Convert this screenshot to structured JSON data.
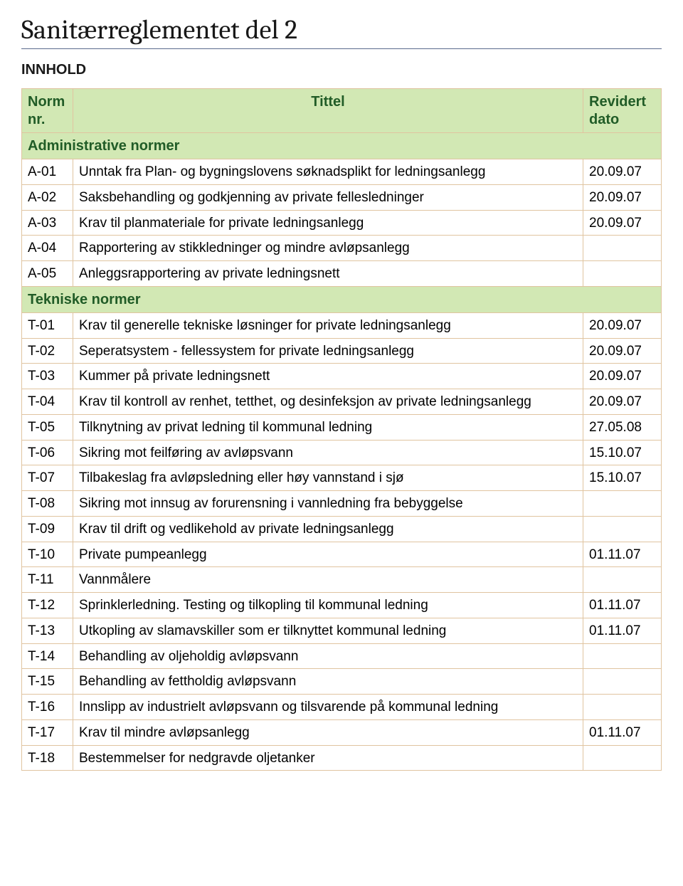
{
  "page": {
    "title": "Sanitærreglementet del 2",
    "subhead": "INNHOLD"
  },
  "colors": {
    "header_bg": "#d2e8b4",
    "header_text": "#215c27",
    "border": "#e0c4a0",
    "rule": "#5a6b8c",
    "body_text": "#000000",
    "background": "#ffffff"
  },
  "table": {
    "columns": {
      "nr_line1": "Norm",
      "nr_line2": "nr.",
      "title": "Tittel",
      "date_line1": "Revidert",
      "date_line2": "dato"
    },
    "sections": [
      {
        "heading": "Administrative normer",
        "rows": [
          {
            "nr": "A-01",
            "title": "Unntak fra Plan- og bygningslovens søknadsplikt for ledningsanlegg",
            "date": "20.09.07"
          },
          {
            "nr": "A-02",
            "title": "Saksbehandling og godkjenning av private fellesledninger",
            "date": "20.09.07"
          },
          {
            "nr": "A-03",
            "title": "Krav til planmateriale for private ledningsanlegg",
            "date": "20.09.07"
          },
          {
            "nr": "A-04",
            "title": "Rapportering av stikkledninger og mindre avløpsanlegg",
            "date": ""
          },
          {
            "nr": "A-05",
            "title": "Anleggsrapportering av private ledningsnett",
            "date": ""
          }
        ]
      },
      {
        "heading": "Tekniske normer",
        "rows": [
          {
            "nr": "T-01",
            "title": "Krav til generelle tekniske løsninger for private ledningsanlegg",
            "date": "20.09.07"
          },
          {
            "nr": "T-02",
            "title": "Seperatsystem - fellessystem for private ledningsanlegg",
            "date": "20.09.07"
          },
          {
            "nr": "T-03",
            "title": "Kummer på private ledningsnett",
            "date": "20.09.07"
          },
          {
            "nr": "T-04",
            "title": "Krav til kontroll av renhet, tetthet, og desinfeksjon av private ledningsanlegg",
            "date": "20.09.07"
          },
          {
            "nr": "T-05",
            "title": "Tilknytning av privat ledning til kommunal ledning",
            "date": "27.05.08"
          },
          {
            "nr": "T-06",
            "title": "Sikring mot feilføring av avløpsvann",
            "date": "15.10.07"
          },
          {
            "nr": "T-07",
            "title": "Tilbakeslag fra avløpsledning eller høy vannstand i sjø",
            "date": "15.10.07"
          },
          {
            "nr": "T-08",
            "title": "Sikring mot innsug av forurensning i vannledning fra bebyggelse",
            "date": ""
          },
          {
            "nr": "T-09",
            "title": "Krav til drift og vedlikehold av private ledningsanlegg",
            "date": ""
          },
          {
            "nr": "T-10",
            "title": "Private pumpeanlegg",
            "date": "01.11.07"
          },
          {
            "nr": "T-11",
            "title": "Vannmålere",
            "date": ""
          },
          {
            "nr": "T-12",
            "title": "Sprinklerledning. Testing og tilkopling til kommunal ledning",
            "date": "01.11.07"
          },
          {
            "nr": "T-13",
            "title": "Utkopling av slamavskiller som er tilknyttet kommunal ledning",
            "date": "01.11.07"
          },
          {
            "nr": "T-14",
            "title": "Behandling av oljeholdig avløpsvann",
            "date": ""
          },
          {
            "nr": "T-15",
            "title": "Behandling av fettholdig avløpsvann",
            "date": ""
          },
          {
            "nr": "T-16",
            "title": "Innslipp av industrielt avløpsvann og tilsvarende på kommunal ledning",
            "date": ""
          },
          {
            "nr": "T-17",
            "title": "Krav til mindre avløpsanlegg",
            "date": "01.11.07"
          },
          {
            "nr": "T-18",
            "title": "Bestemmelser for nedgravde oljetanker",
            "date": ""
          }
        ]
      }
    ]
  }
}
